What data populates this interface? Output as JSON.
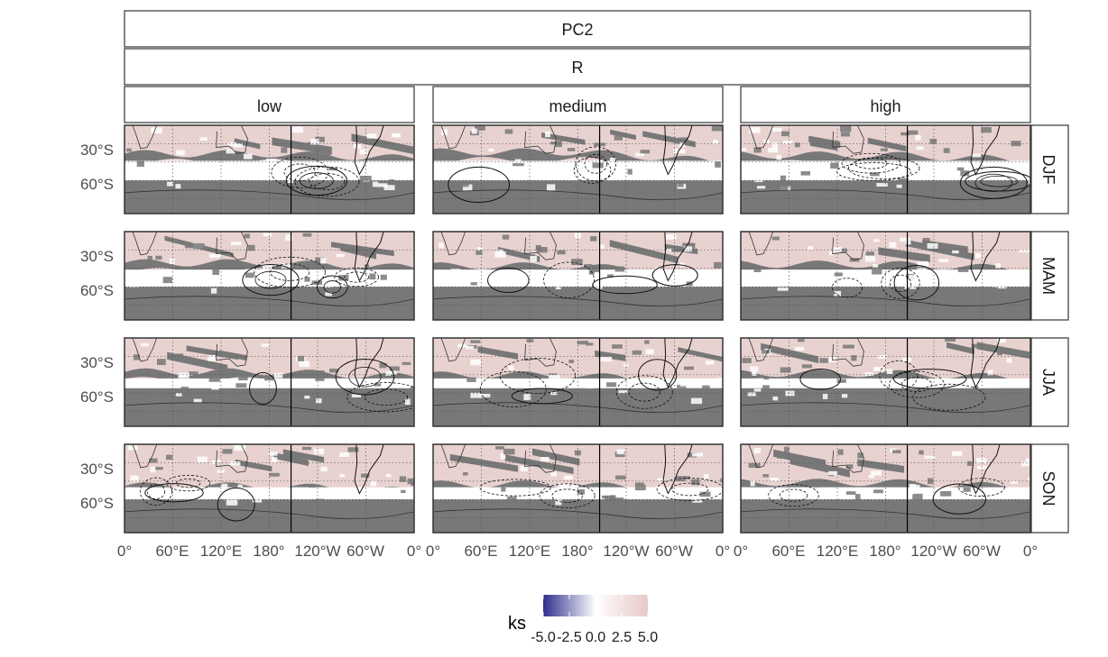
{
  "chart_data": {
    "type": "heatmap",
    "title": "",
    "facet_top": [
      "PC2",
      "R"
    ],
    "columns": [
      "low",
      "medium",
      "high"
    ],
    "rows": [
      "DJF",
      "MAM",
      "JJA",
      "SON"
    ],
    "y_ticks": [
      "30°S",
      "60°S"
    ],
    "x_ticks": [
      "0°",
      "60°E",
      "120°E",
      "180°",
      "120°W",
      "60°W",
      "0°"
    ],
    "lon_range": [
      0,
      360
    ],
    "lat_range": [
      -87,
      -15
    ],
    "fill_classes": [
      "positive (light pink)",
      "near zero (white)",
      "not significant (gray)"
    ],
    "legend": {
      "title": "ks",
      "labels": [
        "-5.0",
        "-2.5",
        "0.0",
        "2.5",
        "5.0"
      ],
      "range": [
        -5,
        5
      ],
      "colors": [
        "#2d2e8c",
        "#ffffff",
        "#e8c8c8"
      ]
    },
    "colors": {
      "gray": "#787878",
      "pink": "#e8d2d0",
      "white": "#ffffff",
      "panel_border": "#333333",
      "strip_border": "#444444"
    },
    "grid": true
  }
}
